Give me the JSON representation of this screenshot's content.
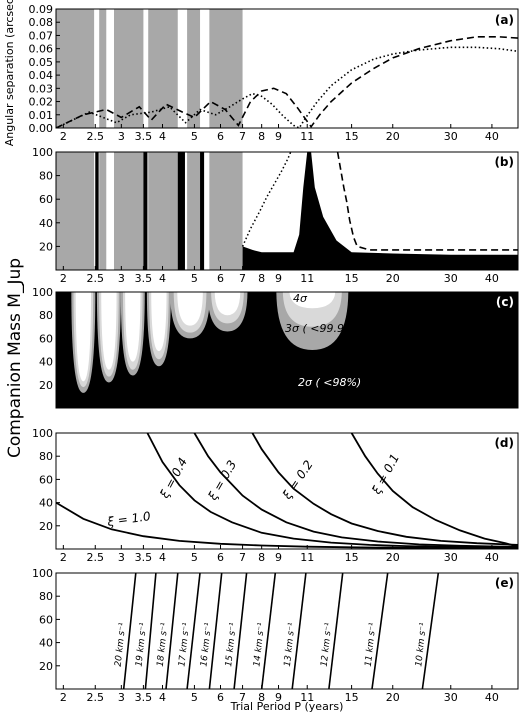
{
  "figure": {
    "xlabel": "Trial Period P (years)",
    "ylabel": "Companion Mass M_Jup",
    "x_ticks": [
      "2",
      "2.5",
      "3",
      "3.5",
      "4",
      "5",
      "6",
      "7",
      "8",
      "9",
      "11",
      "15",
      "20",
      "30",
      "40"
    ],
    "colors": {
      "black": "#000000",
      "dark_gray": "#8c8c8c",
      "mid_gray": "#a8a8a8",
      "light_gray": "#d9d9d9",
      "white": "#ffffff"
    }
  },
  "chart_data": [
    {
      "panel": "(a)",
      "type": "line",
      "ylabel": "Angular separation (arcsec)",
      "ylim": [
        0,
        0.09
      ],
      "y_ticks": [
        "0.00",
        "0.01",
        "0.02",
        "0.03",
        "0.04",
        "0.05",
        "0.06",
        "0.07",
        "0.08",
        "0.09"
      ],
      "xlim": [
        1.9,
        48
      ],
      "x_scale": "log",
      "shaded_period_ranges": [
        [
          1.9,
          2.48
        ],
        [
          2.57,
          2.7
        ],
        [
          2.85,
          3.5
        ],
        [
          3.62,
          4.45
        ],
        [
          4.75,
          5.2
        ],
        [
          5.55,
          7.0
        ]
      ],
      "series": [
        {
          "style": "dashed",
          "x": [
            1.9,
            2.3,
            2.7,
            3.0,
            3.4,
            3.7,
            4.1,
            4.6,
            5.0,
            5.6,
            6.2,
            6.8,
            7.4,
            8.0,
            8.7,
            9.5,
            10.3,
            11.0,
            11.3,
            12.0,
            13.0,
            15.0,
            17.5,
            20.0,
            24.0,
            30.0,
            36.0,
            42.0,
            48.0
          ],
          "y": [
            0.0,
            0.01,
            0.014,
            0.008,
            0.016,
            0.006,
            0.018,
            0.012,
            0.008,
            0.02,
            0.014,
            0.002,
            0.02,
            0.028,
            0.03,
            0.026,
            0.015,
            0.005,
            0.001,
            0.01,
            0.02,
            0.034,
            0.045,
            0.053,
            0.06,
            0.066,
            0.069,
            0.069,
            0.068
          ]
        },
        {
          "style": "dotted",
          "x": [
            1.9,
            2.4,
            2.9,
            3.2,
            3.7,
            4.2,
            4.7,
            5.2,
            5.8,
            6.4,
            7.0,
            7.5,
            8.0,
            8.6,
            9.3,
            10.0,
            10.4,
            10.9,
            11.8,
            13.0,
            15.0,
            17.5,
            20.0,
            24.0,
            30.0,
            36.0,
            42.0,
            48.0
          ],
          "y": [
            0.0,
            0.012,
            0.004,
            0.01,
            0.012,
            0.016,
            0.004,
            0.014,
            0.01,
            0.016,
            0.022,
            0.026,
            0.024,
            0.018,
            0.009,
            0.002,
            0.0,
            0.008,
            0.02,
            0.032,
            0.044,
            0.052,
            0.056,
            0.059,
            0.061,
            0.061,
            0.06,
            0.058
          ]
        }
      ]
    },
    {
      "panel": "(b)",
      "type": "area",
      "ylim": [
        0,
        100
      ],
      "y_ticks": [
        "20",
        "40",
        "60",
        "80",
        "100"
      ],
      "xlim": [
        1.9,
        48
      ],
      "x_scale": "log",
      "excluded_region_upper_edge": {
        "x": [
          7.0,
          7.5,
          8.0,
          9.0,
          10.0,
          10.4,
          10.7,
          11.0,
          11.3,
          11.6,
          12.3,
          13.5,
          15.0,
          20.0,
          30.0,
          48.0
        ],
        "y": [
          20,
          17,
          15,
          15,
          15,
          30,
          70,
          100,
          100,
          70,
          45,
          25,
          15,
          14,
          13,
          13
        ]
      },
      "gray_band_period_ranges": [
        [
          1.9,
          2.48
        ],
        [
          2.57,
          2.7
        ],
        [
          2.85,
          3.5
        ],
        [
          3.62,
          4.45
        ],
        [
          4.75,
          5.2
        ],
        [
          5.55,
          7.0
        ]
      ],
      "black_bar_period_ranges": [
        [
          2.5,
          2.56
        ],
        [
          3.5,
          3.6
        ],
        [
          4.45,
          4.68
        ],
        [
          5.2,
          5.35
        ]
      ],
      "dotted_line": {
        "x": [
          7.0,
          7.4,
          7.9,
          8.3,
          8.7,
          9.2,
          9.6,
          9.8
        ],
        "y": [
          20,
          35,
          50,
          62,
          72,
          84,
          94,
          100
        ]
      },
      "dashed_line": {
        "x": [
          13.6,
          13.9,
          14.2,
          14.5,
          14.8,
          15.2,
          15.6,
          17.0,
          20.0,
          30.0,
          40.0,
          48.0
        ],
        "y": [
          100,
          85,
          70,
          58,
          42,
          28,
          20,
          17,
          17,
          17,
          17,
          17
        ]
      }
    },
    {
      "panel": "(c)",
      "type": "area",
      "ylim": [
        0,
        100
      ],
      "y_ticks": [
        "20",
        "40",
        "60",
        "80",
        "100"
      ],
      "xlim": [
        1.9,
        48
      ],
      "x_scale": "log",
      "annotations": [
        "4σ",
        "3σ ( <99.99",
        "2σ ( <98%)"
      ],
      "resonance_dips": [
        {
          "center": 2.3,
          "bottom_2sigma": 13,
          "bottom_3sigma": 18,
          "bottom_4sigma": 23
        },
        {
          "center": 2.75,
          "bottom_2sigma": 22,
          "bottom_3sigma": 27,
          "bottom_4sigma": 33
        },
        {
          "center": 3.25,
          "bottom_2sigma": 28,
          "bottom_3sigma": 33,
          "bottom_4sigma": 40
        },
        {
          "center": 3.9,
          "bottom_2sigma": 36,
          "bottom_3sigma": 42,
          "bottom_4sigma": 49
        },
        {
          "center": 4.85,
          "bottom_2sigma": 60,
          "bottom_3sigma": 65,
          "bottom_4sigma": 71
        },
        {
          "center": 6.3,
          "bottom_2sigma": 66,
          "bottom_3sigma": 73,
          "bottom_4sigma": 80
        },
        {
          "center": 11.4,
          "bottom_2sigma": 50,
          "bottom_3sigma": 70,
          "bottom_4sigma": 86
        }
      ]
    },
    {
      "panel": "(d)",
      "type": "line",
      "ylim": [
        0,
        100
      ],
      "y_ticks": [
        "20",
        "40",
        "60",
        "80",
        "100"
      ],
      "xlim": [
        1.9,
        48
      ],
      "x_scale": "log",
      "series": [
        {
          "name": "ξ = 1.0",
          "x": [
            1.9,
            2.3,
            2.8,
            3.5,
            4.5,
            6.0,
            8.0,
            11.0,
            15.0,
            20.0,
            30.0,
            48.0
          ],
          "y": [
            40,
            26,
            17,
            11,
            7,
            4.5,
            3,
            2,
            1.5,
            1.1,
            0.8,
            0.5
          ]
        },
        {
          "name": "ξ = 0.4",
          "x": [
            3.6,
            4.0,
            4.5,
            5.0,
            5.6,
            6.5,
            8.0,
            10.0,
            13.0,
            17.0,
            22.0,
            30.0,
            48.0
          ],
          "y": [
            100,
            75,
            55,
            42,
            32,
            23,
            14,
            9,
            5.5,
            3.5,
            2.5,
            1.8,
            1.1
          ]
        },
        {
          "name": "ξ = 0.3",
          "x": [
            5.0,
            5.5,
            6.0,
            7.0,
            8.0,
            9.5,
            11.5,
            14.0,
            18.0,
            24.0,
            32.0,
            48.0
          ],
          "y": [
            100,
            80,
            66,
            46,
            34,
            23,
            15,
            10,
            6.5,
            4,
            2.8,
            1.8
          ]
        },
        {
          "name": "ξ = 0.2",
          "x": [
            7.5,
            8.0,
            9.0,
            10.0,
            11.5,
            13.0,
            15.0,
            18.0,
            22.0,
            28.0,
            36.0,
            48.0
          ],
          "y": [
            100,
            86,
            66,
            52,
            39,
            30,
            22,
            15.5,
            10.5,
            7,
            5,
            3.5
          ]
        },
        {
          "name": "ξ = 0.1",
          "x": [
            15.0,
            16.5,
            18.0,
            20.0,
            23.0,
            27.0,
            32.0,
            38.0,
            44.0,
            48.0
          ],
          "y": [
            100,
            80,
            65,
            50,
            36,
            25,
            16,
            9,
            5,
            2
          ]
        }
      ]
    },
    {
      "panel": "(e)",
      "type": "line",
      "ylim": [
        0,
        100
      ],
      "y_ticks": [
        "20",
        "40",
        "60",
        "80",
        "100"
      ],
      "xlim": [
        1.9,
        48
      ],
      "x_scale": "log",
      "series": [
        {
          "name": "20 km s⁻¹",
          "x": [
            3.05,
            3.32
          ],
          "y": [
            0,
            100
          ]
        },
        {
          "name": "19 km s⁻¹",
          "x": [
            3.55,
            3.82
          ],
          "y": [
            0,
            100
          ]
        },
        {
          "name": "18 km s⁻¹",
          "x": [
            4.1,
            4.45
          ],
          "y": [
            0,
            100
          ]
        },
        {
          "name": "17 km s⁻¹",
          "x": [
            4.75,
            5.2
          ],
          "y": [
            0,
            100
          ]
        },
        {
          "name": "16 km s⁻¹",
          "x": [
            5.55,
            6.05
          ],
          "y": [
            0,
            100
          ]
        },
        {
          "name": "15 km s⁻¹",
          "x": [
            6.6,
            7.2
          ],
          "y": [
            0,
            100
          ]
        },
        {
          "name": "14 km s⁻¹",
          "x": [
            8.0,
            8.8
          ],
          "y": [
            0,
            100
          ]
        },
        {
          "name": "13 km s⁻¹",
          "x": [
            9.9,
            10.9
          ],
          "y": [
            0,
            100
          ]
        },
        {
          "name": "12 km s⁻¹",
          "x": [
            12.8,
            14.1
          ],
          "y": [
            0,
            100
          ]
        },
        {
          "name": "11 km s⁻¹",
          "x": [
            17.3,
            19.3
          ],
          "y": [
            0,
            100
          ]
        },
        {
          "name": "10 km s⁻¹",
          "x": [
            24.6,
            27.5
          ],
          "y": [
            0,
            100
          ]
        }
      ]
    }
  ]
}
